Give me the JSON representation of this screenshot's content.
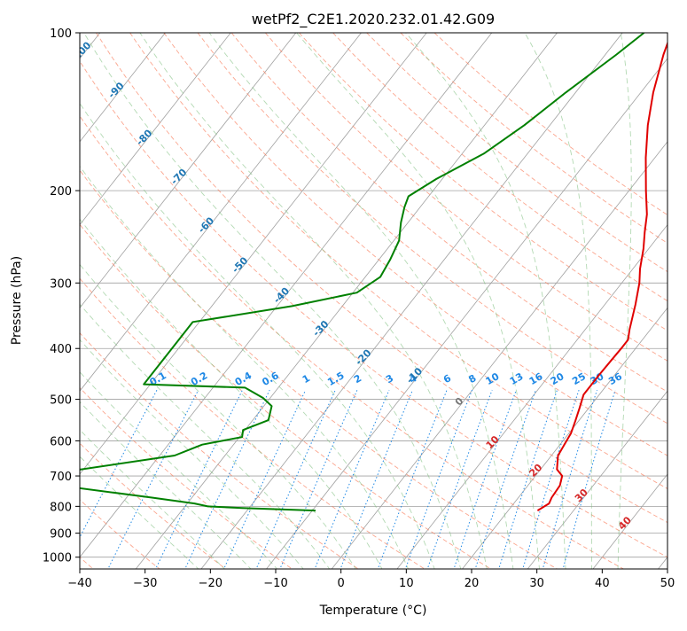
{
  "chart_data": {
    "type": "line",
    "subtype": "skew-t log-p sounding",
    "title": "wetPf2_C2E1.2020.232.01.42.G09",
    "xlabel": "Temperature (°C)",
    "ylabel": "Pressure (hPa)",
    "xlim": [
      -40,
      50
    ],
    "ylim": [
      1050,
      100
    ],
    "y_scale": "log",
    "grid": true,
    "x_ticks": [
      -40,
      -30,
      -20,
      -10,
      0,
      10,
      20,
      30,
      40,
      50
    ],
    "x_tick_labels": [
      "−40",
      "−30",
      "−20",
      "−10",
      "0",
      "10",
      "20",
      "30",
      "40",
      "50"
    ],
    "y_ticks": [
      100,
      200,
      300,
      400,
      500,
      600,
      700,
      800,
      900,
      1000
    ],
    "y_tick_labels": [
      "100",
      "200",
      "300",
      "400",
      "500",
      "600",
      "700",
      "800",
      "900",
      "1000"
    ],
    "series": [
      {
        "color": "#e00000",
        "points": [
          [
            24.5,
            815
          ],
          [
            25.4,
            790
          ],
          [
            25.1,
            770
          ],
          [
            24.9,
            730
          ],
          [
            24.1,
            700
          ],
          [
            22.5,
            680
          ],
          [
            21.0,
            640
          ],
          [
            20.3,
            580
          ],
          [
            19.5,
            550
          ],
          [
            18.6,
            520
          ],
          [
            17.6,
            490
          ],
          [
            17.6,
            450
          ],
          [
            17.7,
            420
          ],
          [
            17.8,
            400
          ],
          [
            17.8,
            385
          ],
          [
            16.8,
            368
          ],
          [
            14.7,
            330
          ],
          [
            12.7,
            300
          ],
          [
            11.1,
            282
          ],
          [
            9.2,
            258
          ],
          [
            7.4,
            240
          ],
          [
            5.6,
            222
          ],
          [
            2.6,
            200
          ],
          [
            -1.4,
            173
          ],
          [
            -5.0,
            150
          ],
          [
            -8.1,
            130
          ],
          [
            -11.1,
            110
          ],
          [
            -12.5,
            100
          ]
        ]
      },
      {
        "color": "#008000",
        "points": [
          [
            -9.5,
            815
          ],
          [
            -21,
            806
          ],
          [
            -26.5,
            800
          ],
          [
            -28.9,
            790
          ],
          [
            -36.1,
            770
          ],
          [
            -51,
            732
          ],
          [
            -51,
            682
          ],
          [
            -37.7,
            640
          ],
          [
            -34.8,
            610
          ],
          [
            -29.6,
            590
          ],
          [
            -30.3,
            572
          ],
          [
            -27.6,
            548
          ],
          [
            -28.8,
            515
          ],
          [
            -31.1,
            497
          ],
          [
            -35.1,
            475
          ],
          [
            -51,
            468
          ],
          [
            -51,
            356
          ],
          [
            -37.7,
            332
          ],
          [
            -29.4,
            313
          ],
          [
            -27.7,
            292
          ],
          [
            -28.3,
            270
          ],
          [
            -29.2,
            249
          ],
          [
            -31.1,
            230
          ],
          [
            -32.4,
            215
          ],
          [
            -33.1,
            205
          ],
          [
            -30.9,
            190
          ],
          [
            -26.7,
            170
          ],
          [
            -23.9,
            150
          ],
          [
            -21.5,
            130
          ],
          [
            -18.3,
            110
          ],
          [
            -16.7,
            100
          ]
        ]
      }
    ],
    "reference_lines": {
      "dry_adiabats_labels": [
        "-100",
        "-90",
        "-80",
        "-70",
        "-60",
        "-50",
        "-40",
        "-30",
        "-20",
        "-10",
        "0",
        "10",
        "20",
        "30",
        "40"
      ],
      "mixing_ratio_labels": [
        "0.1",
        "0.2",
        "0.4",
        "0.6",
        "1",
        "1.5",
        "2",
        "3",
        "4",
        "6",
        "8",
        "10",
        "13",
        "16",
        "20",
        "25",
        "30",
        "36"
      ],
      "mixing_ratio_values": [
        0.1,
        0.2,
        0.4,
        0.6,
        1,
        1.5,
        2,
        3,
        4,
        6,
        8,
        10,
        13,
        16,
        20,
        25,
        30,
        36
      ]
    }
  },
  "colors": {
    "temperature": "#e00000",
    "dewpoint": "#008000",
    "dry_adiabat": "#fa8060",
    "moist_adiabat": "#80c080",
    "mixing_ratio": "#1e88e5",
    "isotherm": "#a0a0a0",
    "theta_curve": "#c8a880",
    "label_blue": "#1f77b4",
    "label_red": "#d62728",
    "label_gray": "#777777"
  }
}
